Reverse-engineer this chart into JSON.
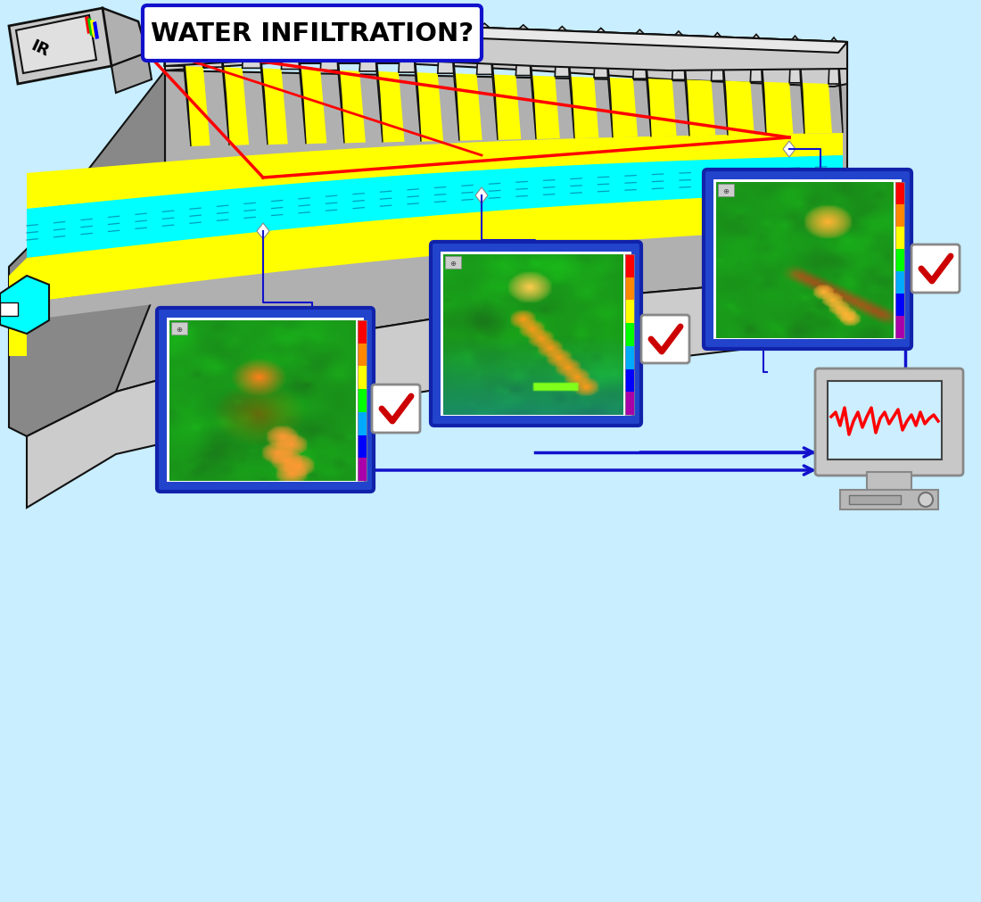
{
  "bg": "#c8eeff",
  "title_text": "WATER INFILTRATION?",
  "title_box_color": "#ffffff",
  "title_box_edge": "#1111cc",
  "dam": {
    "gray_light": "#cccccc",
    "gray_mid": "#b0b0b0",
    "gray_dark": "#888888",
    "yellow": "#ffff00",
    "cyan": "#00ffff",
    "black": "#111111",
    "fin_face": "#d8d8d8",
    "fin_side": "#aaaaaa"
  },
  "arrow_color": "#1111cc",
  "red_line_color": "#ff0000",
  "check_color": "#cc0000"
}
